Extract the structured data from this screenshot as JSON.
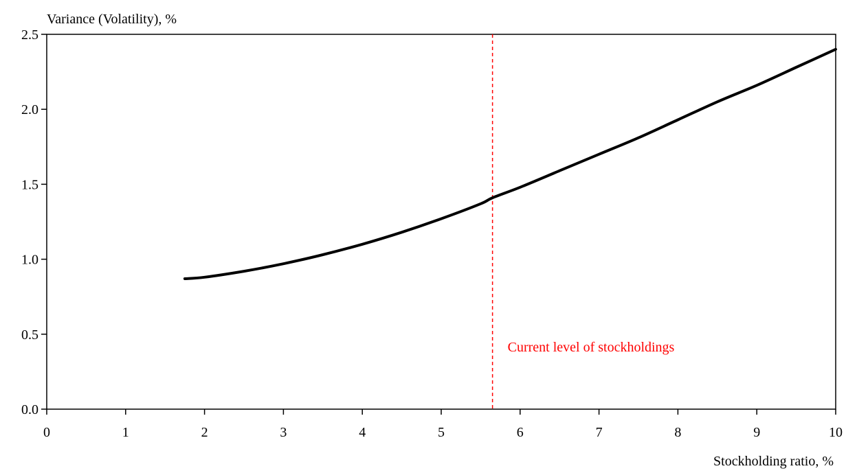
{
  "chart_data": {
    "type": "line",
    "title": "",
    "xlabel": "Stockholding ratio, %",
    "ylabel": "Variance (Volatility), %",
    "xlim": [
      0,
      10
    ],
    "ylim": [
      0,
      2.5
    ],
    "x_ticks": [
      0,
      1,
      2,
      3,
      4,
      5,
      6,
      7,
      8,
      9,
      10
    ],
    "x_tick_labels": [
      "0",
      "1",
      "2",
      "3",
      "4",
      "5",
      "6",
      "7",
      "8",
      "9",
      "10"
    ],
    "y_ticks": [
      0,
      0.5,
      1.0,
      1.5,
      2.0,
      2.5
    ],
    "y_tick_labels": [
      "0.0",
      "0.5",
      "1.0",
      "1.5",
      "2.0",
      "2.5"
    ],
    "grid": false,
    "legend": false,
    "series": [
      {
        "color": "#000000",
        "x": [
          1.75,
          2.0,
          2.5,
          3.0,
          3.5,
          4.0,
          4.5,
          5.0,
          5.5,
          5.65,
          6.0,
          6.5,
          7.0,
          7.5,
          8.0,
          8.5,
          9.0,
          9.5,
          10.0
        ],
        "y": [
          0.87,
          0.88,
          0.92,
          0.97,
          1.03,
          1.1,
          1.18,
          1.27,
          1.37,
          1.41,
          1.48,
          1.59,
          1.7,
          1.81,
          1.93,
          2.05,
          2.16,
          2.28,
          2.4
        ]
      }
    ],
    "reference_line": {
      "x": 5.65,
      "color": "#ff0000",
      "style": "dashed",
      "label": "Current level of stockholdings"
    }
  }
}
